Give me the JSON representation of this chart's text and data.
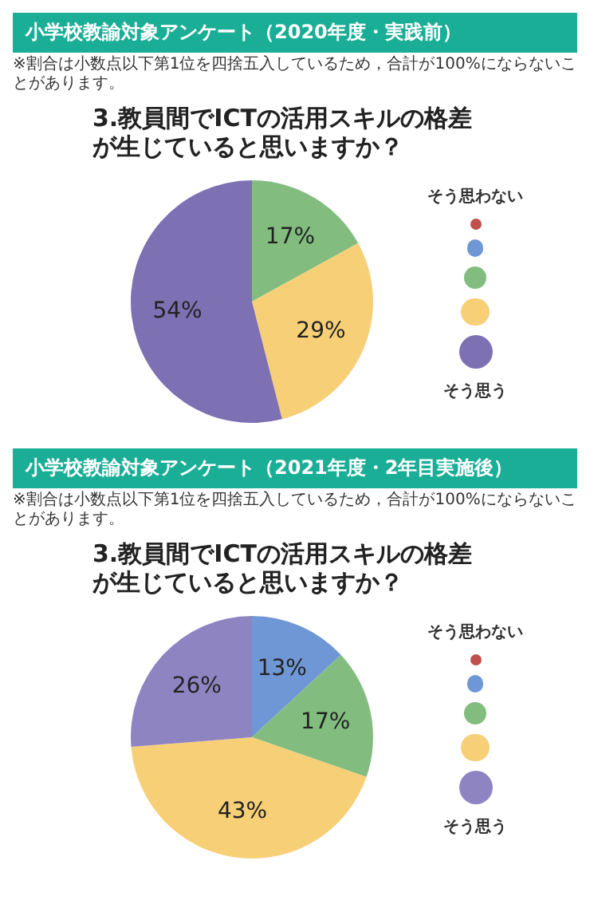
{
  "chart_data": [
    {
      "type": "pie",
      "title": "小学校教諭対象アンケート（2020年度・実践前）",
      "subtitle": "3.教員間でICTの活用スキルの格差が生じていると思いますか？",
      "annotations": [
        "※割合は小数点以下第1位を四捨五入しているため，合計が100%にならないことがあります。"
      ],
      "categories": [
        "そう思わない",
        null,
        null,
        null,
        "そう思う"
      ],
      "values": [
        0,
        0,
        17,
        29,
        54
      ],
      "value_labels": [
        null,
        null,
        "17%",
        "29%",
        "54%"
      ],
      "colors": [
        "#c0504d",
        "#6f97d6",
        "#82bd7f",
        "#f7cf77",
        "#7d70b3"
      ],
      "legend": "right"
    },
    {
      "type": "pie",
      "title": "小学校教諭対象アンケート（2021年度・2年目実施後）",
      "subtitle": "3.教員間でICTの活用スキルの格差が生じていると思いますか？",
      "annotations": [
        "※割合は小数点以下第1位を四捨五入しているため，合計が100%にならないことがあります。"
      ],
      "categories": [
        "そう思わない",
        null,
        null,
        null,
        "そう思う"
      ],
      "values": [
        0,
        13,
        17,
        43,
        26
      ],
      "value_labels": [
        null,
        "13%",
        "17%",
        "43%",
        "26%"
      ],
      "colors": [
        "#c0504d",
        "#6f97d6",
        "#82bd7f",
        "#f7cf77",
        "#8f84c2"
      ],
      "legend": "right"
    }
  ]
}
